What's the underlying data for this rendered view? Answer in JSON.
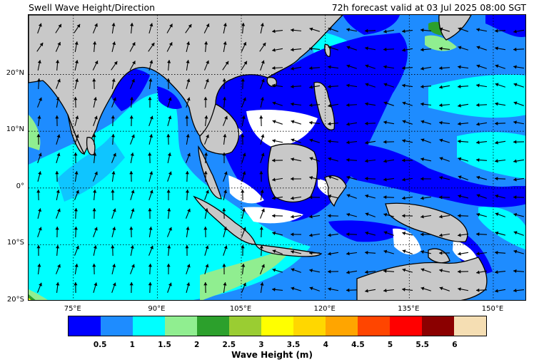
{
  "header": {
    "title": "Swell Wave Height/Direction",
    "valid": "72h forecast valid at 03 Jul 2025 08:00 SGT"
  },
  "map": {
    "lon_range": [
      67.0,
      156.0
    ],
    "lat_range": [
      -20.0,
      30.5
    ],
    "lat_ticks": [
      {
        "lat": 20,
        "label": "20°N"
      },
      {
        "lat": 10,
        "label": "10°N"
      },
      {
        "lat": 0,
        "label": "0°"
      },
      {
        "lat": -10,
        "label": "10°S"
      },
      {
        "lat": -20,
        "label": "20°S"
      }
    ],
    "lon_ticks": [
      {
        "lon": 75,
        "label": "75°E"
      },
      {
        "lon": 90,
        "label": "90°E"
      },
      {
        "lon": 105,
        "label": "105°E"
      },
      {
        "lon": 120,
        "label": "120°E"
      },
      {
        "lon": 135,
        "label": "135°E"
      },
      {
        "lon": 150,
        "label": "150°E"
      }
    ],
    "gridlines": "dotted",
    "land_color": "#c8c8c8"
  },
  "colorbar": {
    "title": "Wave Height (m)",
    "colors": [
      "#0000ff",
      "#1e8cff",
      "#00ffff",
      "#90ee90",
      "#2ca02c",
      "#9acd32",
      "#ffff00",
      "#ffd700",
      "#ffa500",
      "#ff4500",
      "#ff0000",
      "#8b0000",
      "#f5deb3"
    ],
    "ticks": [
      "0.5",
      "1",
      "1.5",
      "2",
      "2.5",
      "3",
      "3.5",
      "4",
      "4.5",
      "5",
      "5.5",
      "6"
    ]
  }
}
